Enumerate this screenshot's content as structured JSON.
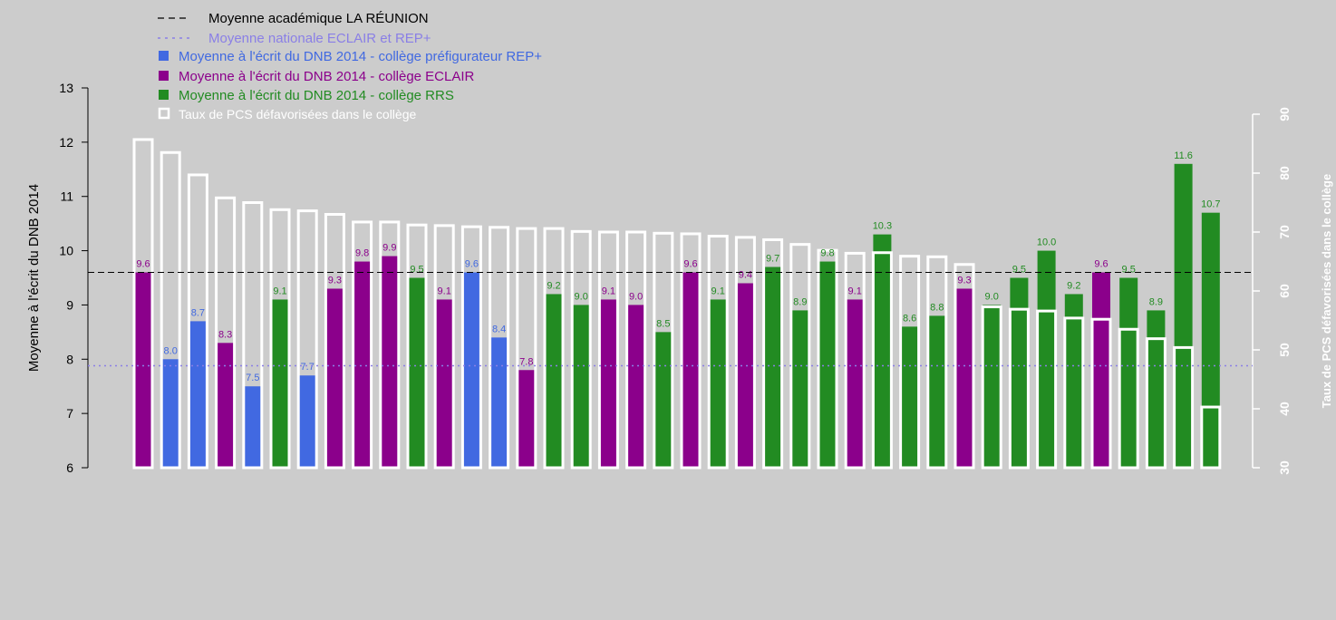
{
  "colors": {
    "background": "#cccccc",
    "rep_plus": "#4169e1",
    "eclair": "#8b008b",
    "rrs": "#228b22",
    "pcs_outline": "#ffffff",
    "national_line": "#8a7fe6",
    "academic_line": "#000000"
  },
  "legend": {
    "academic": "Moyenne académique LA RÉUNION",
    "national": "Moyenne nationale ECLAIR et REP+",
    "rep_plus": "Moyenne à l'écrit du DNB 2014 - collège préfigurateur REP+",
    "eclair": "Moyenne à l'écrit du DNB 2014 - collège ECLAIR",
    "rrs": "Moyenne à l'écrit du DNB 2014 - collège RRS",
    "pcs": "Taux de PCS défavorisées dans le collège"
  },
  "chart_data": {
    "type": "bar",
    "ylabel_left": "Moyenne à l'écrit du DNB 2014",
    "ylabel_right": "Taux de PCS défavorisées dans le collège",
    "ylim_left": [
      6,
      13
    ],
    "yticks_left": [
      "6",
      "7",
      "8",
      "9",
      "10",
      "11",
      "12",
      "13"
    ],
    "ylim_right": [
      30,
      90
    ],
    "yticks_right": [
      "30",
      "40",
      "50",
      "60",
      "70",
      "80",
      "90"
    ],
    "academic_mean": 9.6,
    "national_mean": 7.88,
    "legend_position": "top-left",
    "grid": false,
    "series": [
      {
        "name": "Moyenne à l'écrit du DNB 2014",
        "values": [
          9.6,
          8.0,
          8.7,
          8.3,
          7.5,
          9.1,
          7.7,
          9.3,
          9.8,
          9.9,
          9.5,
          9.1,
          9.6,
          8.4,
          7.8,
          9.2,
          9.0,
          9.1,
          9.0,
          8.5,
          9.6,
          9.1,
          9.4,
          9.7,
          8.9,
          9.8,
          9.1,
          10.3,
          8.6,
          8.8,
          9.3,
          9.0,
          9.5,
          10.0,
          9.2,
          9.6,
          9.5,
          8.9,
          11.6,
          10.7
        ]
      },
      {
        "name": "Taux de PCS défavorisées dans le collège",
        "values": [
          85.7,
          83.5,
          79.7,
          75.8,
          75.0,
          73.8,
          73.6,
          73.0,
          71.7,
          71.7,
          71.2,
          71.1,
          70.9,
          70.8,
          70.6,
          70.6,
          70.1,
          70.0,
          70.0,
          69.8,
          69.7,
          69.3,
          69.1,
          68.7,
          67.9,
          66.9,
          66.4,
          66.5,
          65.9,
          65.8,
          64.5,
          57.3,
          56.9,
          56.6,
          55.4,
          55.2,
          53.5,
          51.9,
          50.4,
          40.3
        ]
      }
    ],
    "bar_groups": [
      "ECLAIR",
      "REP+",
      "REP+",
      "ECLAIR",
      "REP+",
      "RRS",
      "REP+",
      "ECLAIR",
      "ECLAIR",
      "ECLAIR",
      "RRS",
      "ECLAIR",
      "REP+",
      "REP+",
      "ECLAIR",
      "RRS",
      "RRS",
      "ECLAIR",
      "ECLAIR",
      "RRS",
      "ECLAIR",
      "RRS",
      "ECLAIR",
      "RRS",
      "RRS",
      "RRS",
      "ECLAIR",
      "RRS",
      "RRS",
      "RRS",
      "ECLAIR",
      "RRS",
      "RRS",
      "RRS",
      "RRS",
      "ECLAIR",
      "RRS",
      "RRS",
      "RRS",
      "RRS"
    ],
    "value_labels": [
      "9.6",
      "8.0",
      "8.7",
      "8.3",
      "7.5",
      "9.1",
      "7.7",
      "9.3",
      "9.8",
      "9.9",
      "9.5",
      "9.1",
      "9.6",
      "8.4",
      "7.8",
      "9.2",
      "9.0",
      "9.1",
      "9.0",
      "8.5",
      "9.6",
      "9.1",
      "9.4",
      "9.7",
      "8.9",
      "9.8",
      "9.1",
      "10.3",
      "8.6",
      "8.8",
      "9.3",
      "9.0",
      "9.5",
      "10.0",
      "9.2",
      "9.6",
      "9.5",
      "8.9",
      "11.6",
      "10.7"
    ]
  }
}
